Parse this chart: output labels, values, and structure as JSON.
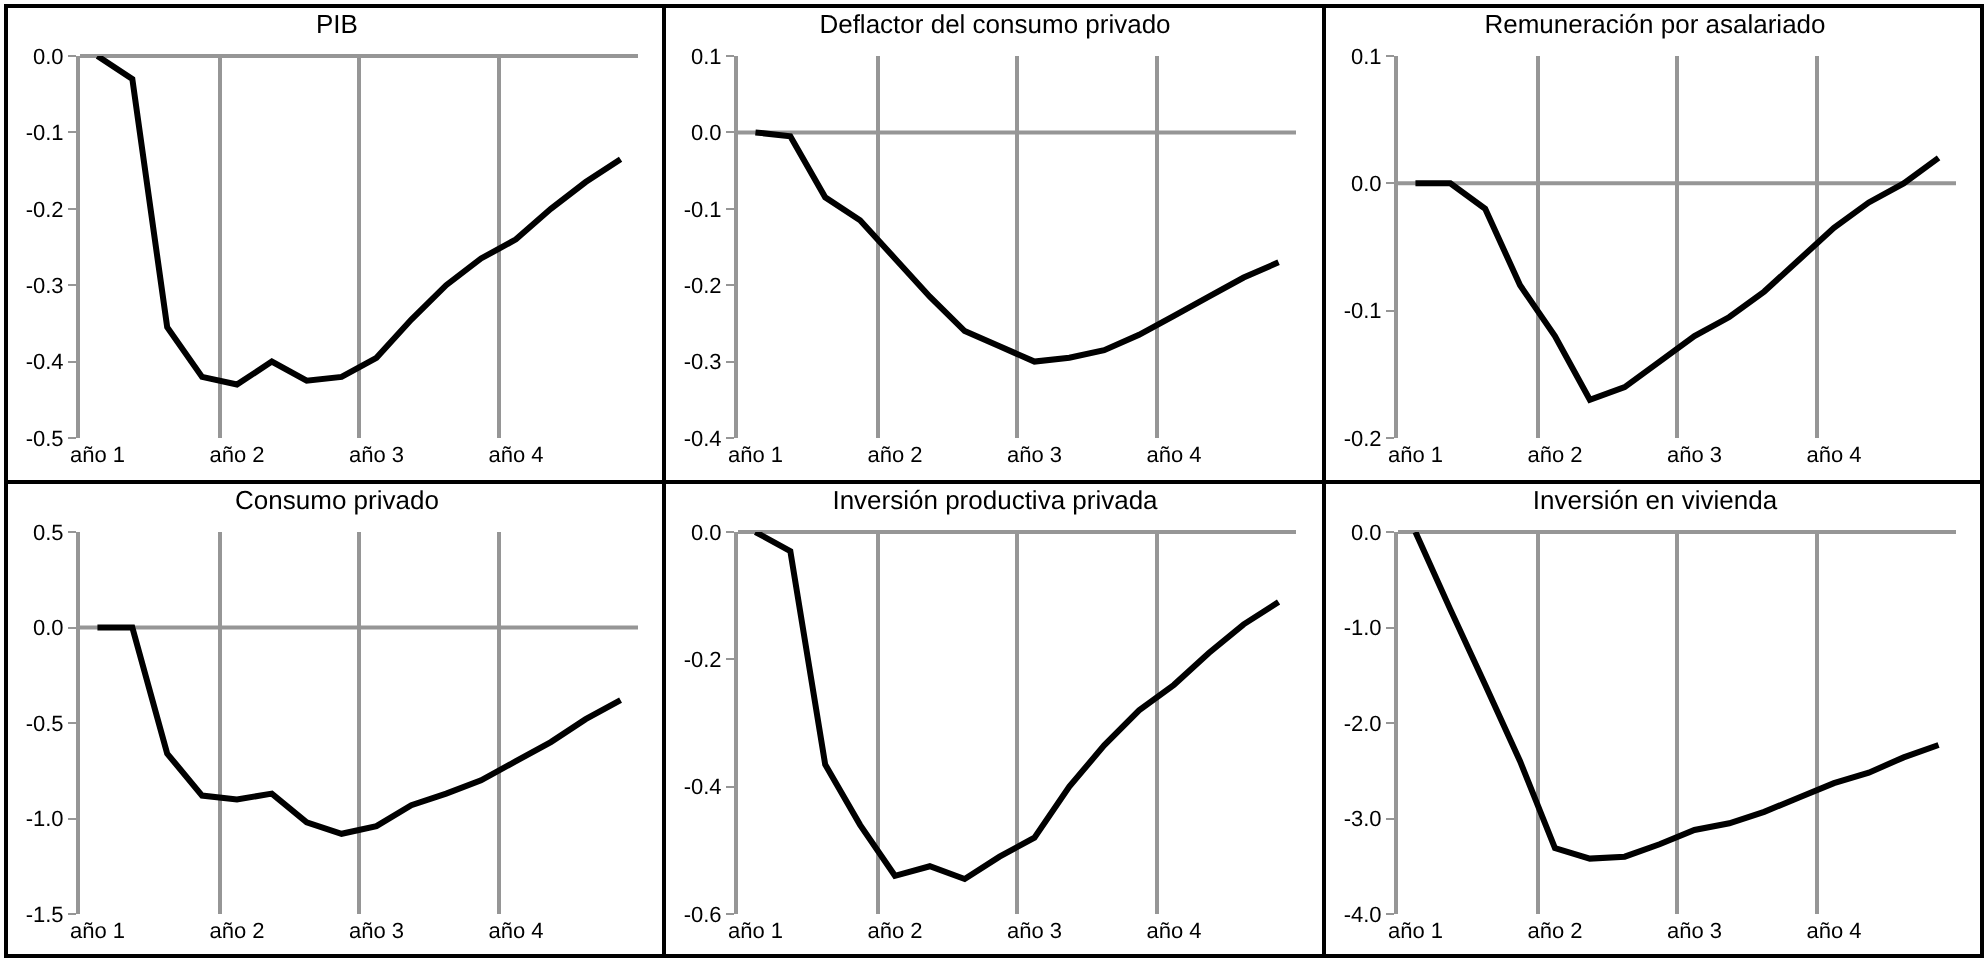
{
  "chart_data": [
    {
      "type": "line",
      "title": "PIB",
      "color": "#000000",
      "grid": "x",
      "categories": [
        "año 1",
        null,
        null,
        null,
        "año 2",
        null,
        null,
        null,
        "año 3",
        null,
        null,
        null,
        "año 4",
        null,
        null,
        null
      ],
      "ylim": [
        -0.5,
        0
      ],
      "yticks": [
        {
          "value": -0.5,
          "label": "-0.5"
        },
        {
          "value": -0.4,
          "label": "-0.4"
        },
        {
          "value": -0.3,
          "label": "-0.3"
        },
        {
          "value": -0.2,
          "label": "-0.2"
        },
        {
          "value": -0.1,
          "label": "-0.1"
        },
        {
          "value": 0,
          "label": "0.0"
        }
      ],
      "values": [
        0,
        -0.03,
        -0.355,
        -0.42,
        -0.43,
        -0.4,
        -0.425,
        -0.42,
        -0.395,
        -0.345,
        -0.3,
        -0.265,
        -0.24,
        -0.2,
        -0.165,
        -0.135
      ]
    },
    {
      "type": "line",
      "ref_lines": [
        {
          "axis": "y",
          "value": 0
        }
      ],
      "title": "Deflactor del consumo privado",
      "color": "#000000",
      "grid": "x",
      "categories": [
        "año 1",
        null,
        null,
        null,
        "año 2",
        null,
        null,
        null,
        "año 3",
        null,
        null,
        null,
        "año 4",
        null,
        null,
        null
      ],
      "ylim": [
        -0.4,
        0.1
      ],
      "yticks": [
        {
          "value": -0.4,
          "label": "-0.4"
        },
        {
          "value": -0.3,
          "label": "-0.3"
        },
        {
          "value": -0.2,
          "label": "-0.2"
        },
        {
          "value": -0.1,
          "label": "-0.1"
        },
        {
          "value": 0,
          "label": "0.0"
        },
        {
          "value": 0.1,
          "label": "0.1"
        }
      ],
      "values": [
        0,
        -0.005,
        -0.085,
        -0.115,
        -0.165,
        -0.215,
        -0.26,
        -0.28,
        -0.3,
        -0.295,
        -0.285,
        -0.265,
        -0.24,
        -0.215,
        -0.19,
        -0.17
      ]
    },
    {
      "type": "line",
      "ref_lines": [
        {
          "axis": "y",
          "value": 0
        }
      ],
      "title": "Remuneración por asalariado",
      "color": "#000000",
      "grid": "x",
      "categories": [
        "año 1",
        null,
        null,
        null,
        "año 2",
        null,
        null,
        null,
        "año 3",
        null,
        null,
        null,
        "año 4",
        null,
        null,
        null
      ],
      "ylim": [
        -0.2,
        0.1
      ],
      "yticks": [
        {
          "value": -0.2,
          "label": "-0.2"
        },
        {
          "value": -0.1,
          "label": "-0.1"
        },
        {
          "value": 0,
          "label": "0.0"
        },
        {
          "value": 0.1,
          "label": "0.1"
        }
      ],
      "values": [
        0,
        0,
        -0.02,
        -0.08,
        -0.12,
        -0.17,
        -0.16,
        -0.14,
        -0.12,
        -0.105,
        -0.085,
        -0.06,
        -0.035,
        -0.015,
        0,
        0.02
      ]
    },
    {
      "type": "line",
      "ref_lines": [
        {
          "axis": "y",
          "value": 0
        }
      ],
      "title": "Consumo privado",
      "color": "#000000",
      "grid": "x",
      "categories": [
        "año 1",
        null,
        null,
        null,
        "año 2",
        null,
        null,
        null,
        "año 3",
        null,
        null,
        null,
        "año 4",
        null,
        null,
        null
      ],
      "ylim": [
        -1.5,
        0.5
      ],
      "yticks": [
        {
          "value": -1.5,
          "label": "-1.5"
        },
        {
          "value": -1.0,
          "label": "-1.0"
        },
        {
          "value": -0.5,
          "label": "-0.5"
        },
        {
          "value": 0,
          "label": "0.0"
        },
        {
          "value": 0.5,
          "label": "0.5"
        }
      ],
      "values": [
        0,
        0,
        -0.66,
        -0.88,
        -0.9,
        -0.87,
        -1.02,
        -1.08,
        -1.04,
        -0.93,
        -0.87,
        -0.8,
        -0.7,
        -0.6,
        -0.48,
        -0.38
      ]
    },
    {
      "type": "line",
      "title": "Inversión productiva privada",
      "color": "#000000",
      "grid": "x",
      "categories": [
        "año 1",
        null,
        null,
        null,
        "año 2",
        null,
        null,
        null,
        "año 3",
        null,
        null,
        null,
        "año 4",
        null,
        null,
        null
      ],
      "ylim": [
        -0.6,
        0
      ],
      "yticks": [
        {
          "value": -0.6,
          "label": "-0.6"
        },
        {
          "value": -0.4,
          "label": "-0.4"
        },
        {
          "value": -0.2,
          "label": "-0.2"
        },
        {
          "value": 0,
          "label": "0.0"
        }
      ],
      "values": [
        0,
        -0.03,
        -0.365,
        -0.46,
        -0.54,
        -0.525,
        -0.545,
        -0.51,
        -0.48,
        -0.4,
        -0.335,
        -0.28,
        -0.24,
        -0.19,
        -0.145,
        -0.11
      ]
    },
    {
      "type": "line",
      "title": "Inversión en vivienda",
      "color": "#000000",
      "grid": "x",
      "categories": [
        "año 1",
        null,
        null,
        null,
        "año 2",
        null,
        null,
        null,
        "año 3",
        null,
        null,
        null,
        "año 4",
        null,
        null,
        null
      ],
      "ylim": [
        -4,
        0
      ],
      "yticks": [
        {
          "value": -4,
          "label": "-4.0"
        },
        {
          "value": -3,
          "label": "-3.0"
        },
        {
          "value": -2,
          "label": "-2.0"
        },
        {
          "value": -1,
          "label": "-1.0"
        },
        {
          "value": 0,
          "label": "0.0"
        }
      ],
      "values": [
        0,
        -0.81,
        -1.6,
        -2.4,
        -3.31,
        -3.42,
        -3.4,
        -3.27,
        -3.12,
        -3.05,
        -2.93,
        -2.78,
        -2.63,
        -2.52,
        -2.36,
        -2.23
      ]
    }
  ]
}
